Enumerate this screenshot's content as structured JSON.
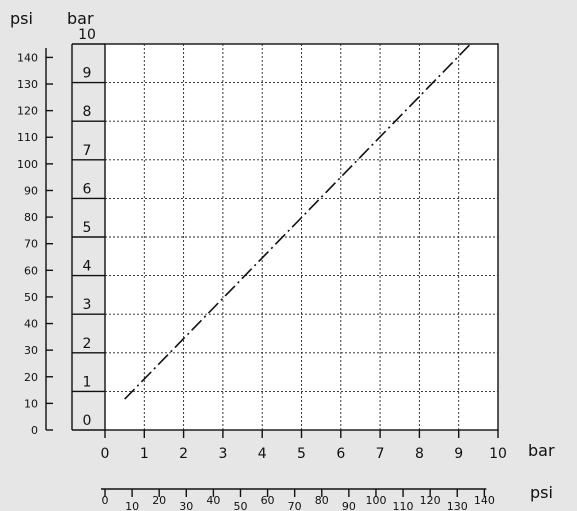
{
  "chart_data": {
    "type": "line",
    "x_unit_label": "bar",
    "y_unit_label": "bar",
    "secondary_x_unit_label": "psi",
    "secondary_y_unit_label": "psi",
    "xlim": [
      0,
      10
    ],
    "ylim": [
      0,
      10
    ],
    "x_ticks": [
      "0",
      "1",
      "2",
      "3",
      "4",
      "5",
      "6",
      "7",
      "8",
      "9",
      "10"
    ],
    "y_ticks": [
      "0",
      "1",
      "2",
      "3",
      "4",
      "5",
      "6",
      "7",
      "8",
      "9",
      "10"
    ],
    "secondary_x_ticks": [
      "0",
      "10",
      "20",
      "30",
      "40",
      "50",
      "60",
      "70",
      "80",
      "90",
      "100",
      "110",
      "120",
      "130",
      "140"
    ],
    "secondary_y_ticks": [
      "0",
      "10",
      "20",
      "30",
      "40",
      "50",
      "60",
      "70",
      "80",
      "90",
      "100",
      "110",
      "120",
      "130",
      "140"
    ],
    "grid": true,
    "line_style": "dash-dot",
    "series": [
      {
        "x": [
          0.5,
          9.3
        ],
        "y": [
          0.8,
          10.0
        ]
      }
    ]
  }
}
